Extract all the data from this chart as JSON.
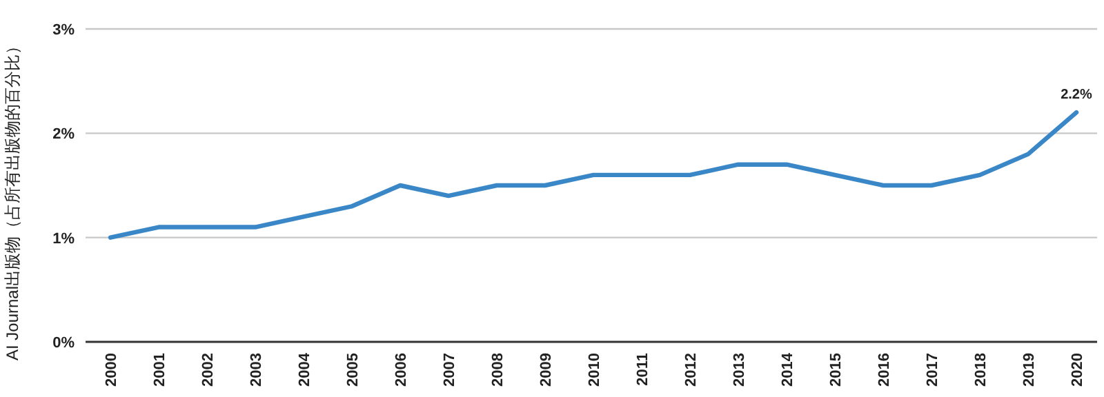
{
  "chart_data": {
    "type": "line",
    "ylabel": "AI Journal出版物（占所有出版物的百分比）",
    "categories": [
      "2000",
      "2001",
      "2002",
      "2003",
      "2004",
      "2005",
      "2006",
      "2007",
      "2008",
      "2009",
      "2010",
      "2011",
      "2012",
      "2013",
      "2014",
      "2015",
      "2016",
      "2017",
      "2018",
      "2019",
      "2020"
    ],
    "series": [
      {
        "color": "#3a87c8",
        "values": [
          1.0,
          1.1,
          1.1,
          1.1,
          1.2,
          1.3,
          1.5,
          1.4,
          1.5,
          1.5,
          1.6,
          1.6,
          1.6,
          1.7,
          1.7,
          1.6,
          1.5,
          1.5,
          1.6,
          1.8,
          2.2
        ]
      }
    ],
    "ylim": [
      0,
      3
    ],
    "yticks": [
      {
        "value": 0,
        "label": "0%"
      },
      {
        "value": 1,
        "label": "1%"
      },
      {
        "value": 2,
        "label": "2%"
      },
      {
        "value": 3,
        "label": "3%"
      }
    ],
    "grid": "y",
    "marker": "none",
    "line_style": "solid",
    "annotations": [
      {
        "text": "2.2%",
        "x": "2020",
        "y": 2.2
      }
    ]
  }
}
